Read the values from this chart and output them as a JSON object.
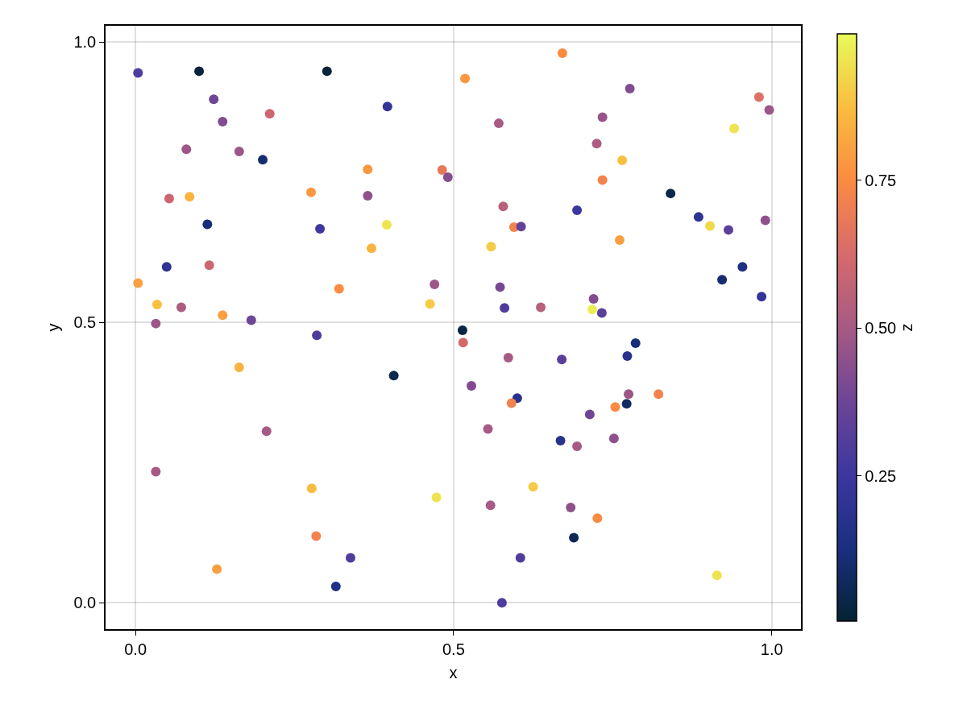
{
  "chart_data": {
    "type": "scatter",
    "xlabel": "x",
    "ylabel": "y",
    "clabel": "z",
    "marker": "circle",
    "grid": true,
    "xlim": [
      -0.047,
      1.046
    ],
    "ylim": [
      -0.047,
      1.029
    ],
    "xticks": [
      {
        "value": 0,
        "label": "0.0"
      },
      {
        "value": 0.5,
        "label": "0.5"
      },
      {
        "value": 1,
        "label": "1.0"
      }
    ],
    "yticks": [
      {
        "value": 0,
        "label": "0.0"
      },
      {
        "value": 0.5,
        "label": "0.5"
      },
      {
        "value": 1,
        "label": "1.0"
      }
    ],
    "clim": [
      0.005,
      0.997
    ],
    "cticks": [
      0.25,
      {
        "value": 0.5,
        "label": "0.50"
      },
      0.75
    ],
    "series": [
      {
        "x": [
          0.004,
          0.1,
          0.301,
          0.123,
          0.137,
          0.211,
          0.396,
          0.08,
          0.163,
          0.2,
          0.365,
          0.482,
          0.491,
          0.053,
          0.085,
          0.276,
          0.365,
          0.113,
          0.29,
          0.395,
          0.371,
          0.049,
          0.116,
          0.004,
          0.32,
          0.47,
          0.463,
          0.034,
          0.072,
          0.137,
          0.182,
          0.032,
          0.285,
          0.163,
          0.406,
          0.206,
          0.032,
          0.277,
          0.473,
          0.284,
          0.338,
          0.128,
          0.315,
          0.671,
          0.518,
          0.777,
          0.98,
          0.996,
          0.571,
          0.734,
          0.941,
          0.725,
          0.765,
          0.734,
          0.841,
          0.578,
          0.694,
          0.885,
          0.903,
          0.932,
          0.99,
          0.595,
          0.606,
          0.559,
          0.761,
          0.954,
          0.922,
          0.984,
          0.573,
          0.58,
          0.637,
          0.72,
          0.718,
          0.733,
          0.514,
          0.515,
          0.586,
          0.67,
          0.786,
          0.773,
          0.528,
          0.6,
          0.591,
          0.775,
          0.822,
          0.772,
          0.754,
          0.714,
          0.554,
          0.668,
          0.694,
          0.752,
          0.625,
          0.558,
          0.684,
          0.726,
          0.689,
          0.605,
          0.914,
          0.576
        ],
        "values": [
          0.945,
          0.948,
          0.948,
          0.898,
          0.858,
          0.872,
          0.885,
          0.809,
          0.805,
          0.79,
          0.773,
          0.772,
          0.759,
          0.721,
          0.724,
          0.732,
          0.726,
          0.675,
          0.667,
          0.674,
          0.632,
          0.599,
          0.602,
          0.57,
          0.56,
          0.568,
          0.533,
          0.532,
          0.527,
          0.513,
          0.504,
          0.498,
          0.477,
          0.42,
          0.405,
          0.306,
          0.234,
          0.204,
          0.188,
          0.119,
          0.08,
          0.06,
          0.029,
          0.98,
          0.935,
          0.917,
          0.902,
          0.879,
          0.855,
          0.866,
          0.846,
          0.819,
          0.789,
          0.754,
          0.73,
          0.707,
          0.7,
          0.688,
          0.672,
          0.665,
          0.682,
          0.67,
          0.671,
          0.635,
          0.647,
          0.599,
          0.576,
          0.546,
          0.563,
          0.526,
          0.527,
          0.542,
          0.523,
          0.517,
          0.486,
          0.464,
          0.437,
          0.434,
          0.463,
          0.44,
          0.387,
          0.365,
          0.356,
          0.372,
          0.372,
          0.355,
          0.349,
          0.336,
          0.31,
          0.289,
          0.279,
          0.293,
          0.207,
          0.174,
          0.17,
          0.151,
          0.116,
          0.08,
          0.049,
          0.0
        ],
        "cvalues": [
          0.3,
          0.02,
          0.02,
          0.38,
          0.42,
          0.6,
          0.22,
          0.48,
          0.48,
          0.1,
          0.78,
          0.68,
          0.43,
          0.6,
          0.85,
          0.78,
          0.45,
          0.12,
          0.26,
          0.95,
          0.85,
          0.2,
          0.6,
          0.8,
          0.75,
          0.48,
          0.9,
          0.88,
          0.52,
          0.8,
          0.38,
          0.48,
          0.3,
          0.85,
          0.05,
          0.5,
          0.5,
          0.87,
          0.95,
          0.72,
          0.3,
          0.8,
          0.15,
          0.75,
          0.78,
          0.42,
          0.65,
          0.48,
          0.5,
          0.47,
          0.95,
          0.52,
          0.88,
          0.72,
          0.04,
          0.55,
          0.25,
          0.2,
          0.93,
          0.33,
          0.45,
          0.72,
          0.35,
          0.9,
          0.8,
          0.15,
          0.1,
          0.22,
          0.4,
          0.3,
          0.55,
          0.42,
          0.97,
          0.33,
          0.03,
          0.62,
          0.5,
          0.33,
          0.12,
          0.18,
          0.42,
          0.18,
          0.72,
          0.48,
          0.72,
          0.08,
          0.75,
          0.38,
          0.5,
          0.18,
          0.5,
          0.45,
          0.9,
          0.5,
          0.45,
          0.75,
          0.06,
          0.3,
          0.95,
          0.3
        ]
      }
    ]
  }
}
